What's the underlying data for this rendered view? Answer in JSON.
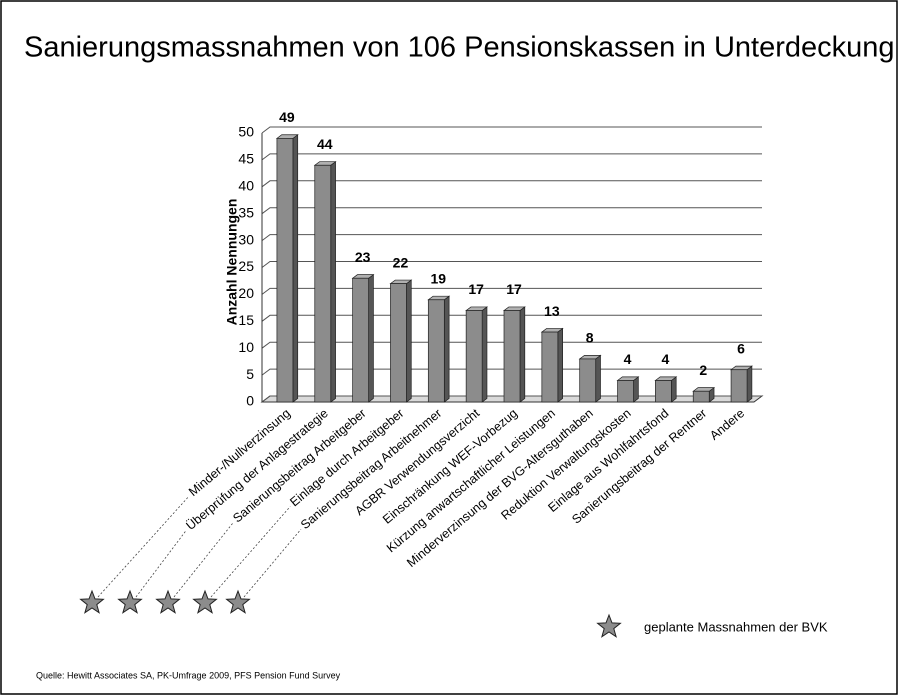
{
  "chart_data": {
    "type": "bar",
    "title": "Sanierungsmassnahmen von 106 Pensionskassen in Unterdeckung",
    "y_label": "Anzahl Nennungen",
    "categories": [
      "Minder-/Nullverzinsung",
      "Überprüfung der Anlagestrategie",
      "Sanierungsbeitrag Arbeitgeber",
      "Einlage durch Arbeitgeber",
      "Sanierungsbeitrag Arbeitnehmer",
      "AGBR Verwendungsverzicht",
      "Einschränkung WEF-Vorbezug",
      "Kürzung anwartschaftlicher Leistungen",
      "Minderverzinsung der BVG-Altersguthaben",
      "Reduktion Verwaltungskosten",
      "Einlage aus Wohlfahrtsfond",
      "Sanierungsbeitrag der Rentner",
      "Andere"
    ],
    "values": [
      49,
      44,
      23,
      22,
      19,
      17,
      17,
      13,
      8,
      4,
      4,
      2,
      6
    ],
    "color": "#8c8c8c",
    "ylim": [
      0,
      50
    ],
    "yticks": [
      0,
      5,
      10,
      15,
      20,
      25,
      30,
      35,
      40,
      45,
      50
    ],
    "grid": true,
    "legend": "geplante Massnahmen der BVK",
    "source": "Quelle: Hewitt Associates SA, PK-Umfrage 2009, PFS Pension Fund Survey"
  }
}
